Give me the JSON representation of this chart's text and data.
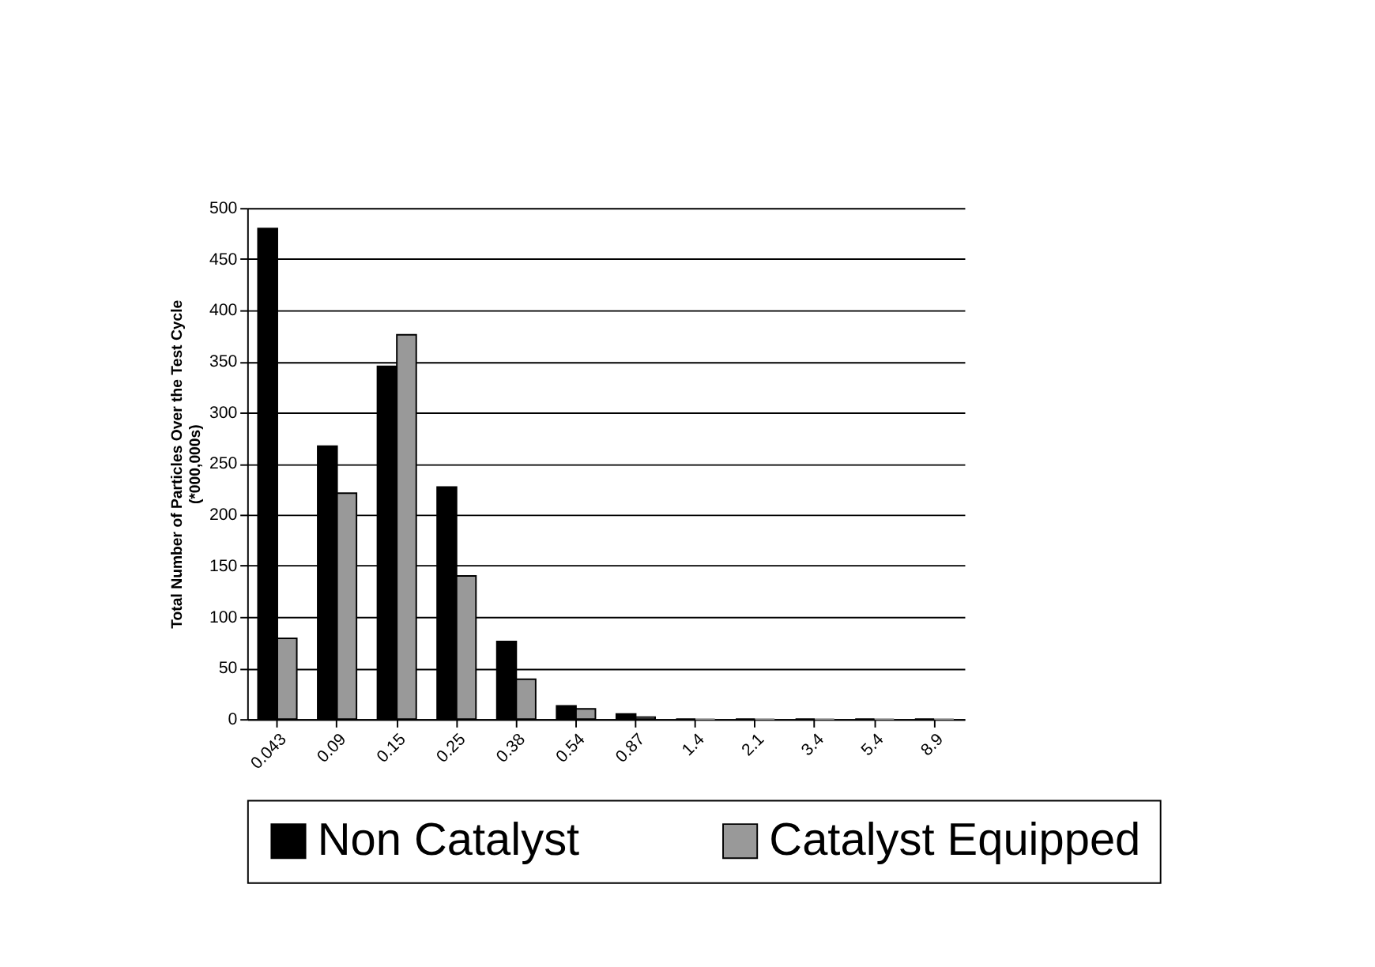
{
  "chart_data": {
    "type": "bar",
    "ylabel": "Total Number of Particles Over the Test Cycle\n(*000,000s)",
    "categories": [
      "0.043",
      "0.09",
      "0.15",
      "0.25",
      "0.38",
      "0.54",
      "0.87",
      "1.4",
      "2.1",
      "3.4",
      "5.4",
      "8.9"
    ],
    "series": [
      {
        "name": "Non Catalyst",
        "color": "#000000",
        "values": [
          480,
          267,
          345,
          227,
          76,
          13,
          5,
          0,
          0,
          0,
          0,
          0
        ]
      },
      {
        "name": "Catalyst Equipped",
        "color": "#999999",
        "values": [
          79,
          221,
          376,
          140,
          39,
          10,
          2,
          0,
          0,
          0,
          0,
          0
        ]
      }
    ],
    "ylim": [
      0,
      500
    ],
    "yticks": [
      0,
      50,
      100,
      150,
      200,
      250,
      300,
      350,
      400,
      450,
      500
    ],
    "grid": "y",
    "legend": "bottom"
  }
}
